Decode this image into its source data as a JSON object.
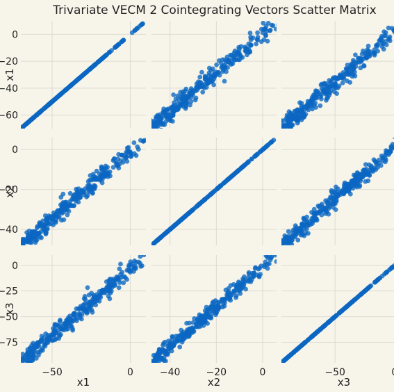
{
  "chart_data": {
    "type": "scatter",
    "title": "Trivariate VECM 2 Cointegrating Vectors Scatter Matrix",
    "variables": [
      "x1",
      "x2",
      "x3"
    ],
    "point_color": "#0a66c2",
    "grid": true,
    "axes": {
      "x1": {
        "range": [
          -70,
          10
        ],
        "ticks": [
          0,
          -20,
          -40,
          -60
        ],
        "x_ticks": [
          -50,
          0
        ]
      },
      "x2": {
        "range": [
          -48,
          6
        ],
        "ticks": [
          0,
          -20,
          -40
        ],
        "x_ticks": [
          -40,
          -20,
          0
        ]
      },
      "x3": {
        "range": [
          -95,
          10
        ],
        "ticks": [
          0,
          -25,
          -50,
          -75
        ],
        "x_ticks": [
          -50,
          0
        ]
      }
    },
    "panels": [
      {
        "row": "x1",
        "col": "x1",
        "relation": "identity",
        "spread": 0
      },
      {
        "row": "x1",
        "col": "x2",
        "relation": "linear",
        "spread": 0.06
      },
      {
        "row": "x1",
        "col": "x3",
        "relation": "linear",
        "spread": 0.06
      },
      {
        "row": "x2",
        "col": "x1",
        "relation": "linear",
        "spread": 0.06
      },
      {
        "row": "x2",
        "col": "x2",
        "relation": "identity",
        "spread": 0
      },
      {
        "row": "x2",
        "col": "x3",
        "relation": "linear",
        "spread": 0.05
      },
      {
        "row": "x3",
        "col": "x1",
        "relation": "linear",
        "spread": 0.06
      },
      {
        "row": "x3",
        "col": "x2",
        "relation": "linear",
        "spread": 0.05
      },
      {
        "row": "x3",
        "col": "x3",
        "relation": "identity",
        "spread": 0
      }
    ]
  }
}
